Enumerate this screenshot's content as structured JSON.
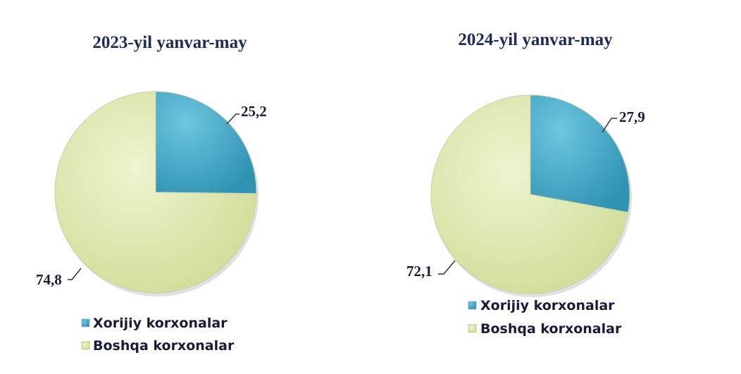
{
  "colors": {
    "foreign": "#4db3cf",
    "other": "#dfe9b0"
  },
  "chart_data": [
    {
      "type": "pie",
      "title": "2023-yil yanvar-may",
      "labels": [
        "Xorijiy korxonalar",
        "Boshqa korxonalar"
      ],
      "values": [
        25.2,
        74.8
      ],
      "value_labels": [
        "25,2",
        "74,8"
      ],
      "legend": "bottom"
    },
    {
      "type": "pie",
      "title": "2024-yil yanvar-may",
      "labels": [
        "Xorijiy korxonalar",
        "Boshqa korxonalar"
      ],
      "values": [
        27.9,
        72.1
      ],
      "value_labels": [
        "27,9",
        "72,1"
      ],
      "legend": "bottom"
    }
  ]
}
